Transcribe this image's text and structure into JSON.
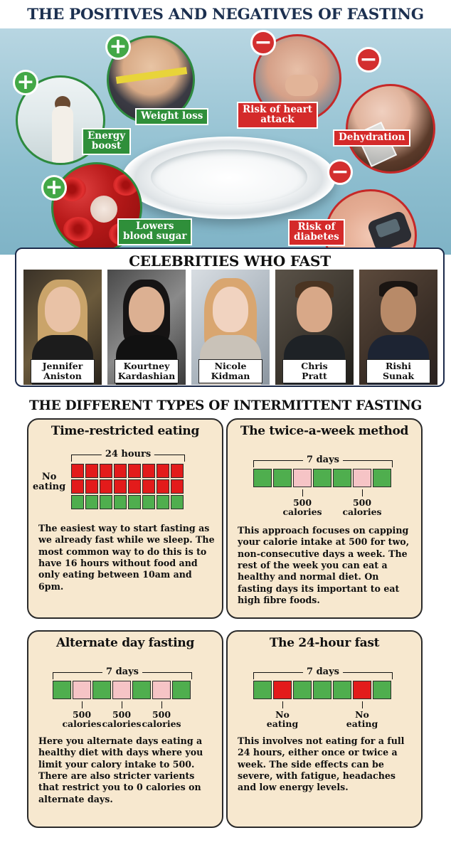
{
  "title": "THE POSITIVES AND NEGATIVES OF FASTING",
  "positives": [
    "Weight loss",
    "Energy\nboost",
    "Lowers\nblood sugar"
  ],
  "negatives": [
    "Risk of heart\nattack",
    "Dehydration",
    "Risk of\ndiabetes"
  ],
  "celebrities": {
    "title": "CELEBRITIES WHO FAST",
    "people": [
      {
        "first": "Jennifer",
        "last": "Aniston"
      },
      {
        "first": "Kourtney",
        "last": "Kardashian"
      },
      {
        "first": "Nicole",
        "last": "Kidman"
      },
      {
        "first": "Chris",
        "last": "Pratt"
      },
      {
        "first": "Rishi",
        "last": "Sunak"
      }
    ]
  },
  "types_title": "THE DIFFERENT TYPES OF INTERMITTENT FASTING",
  "cards": {
    "time_restricted": {
      "title": "Time-restricted eating",
      "span": "24 hours",
      "side_label": "No\neating",
      "hours_pattern": [
        "rrrrrrrr",
        "rrrrrrrr",
        "gggggggg"
      ],
      "body": "The easiest way to start fasting as we already fast while we sleep.  The most common way to do this is to have 16 hours without food and only eating between 10am and 6pm."
    },
    "twice_a_week": {
      "title": "The twice-a-week method",
      "span": "7 days",
      "days": [
        "g",
        "g",
        "p",
        "g",
        "g",
        "p",
        "g"
      ],
      "marks": [
        {
          "day": 2,
          "text": "500\ncalories"
        },
        {
          "day": 5,
          "text": "500\ncalories"
        }
      ],
      "body": "This approach focuses on capping your calorie intake at 500 for two, non-consecutive days a week.  The rest of the week you can eat a healthy and normal diet.  On fasting days its important to eat high fibre foods."
    },
    "alternate_day": {
      "title": "Alternate day fasting",
      "span": "7 days",
      "days": [
        "g",
        "p",
        "g",
        "p",
        "g",
        "p",
        "g"
      ],
      "marks": [
        {
          "day": 1,
          "text": "500\ncalories"
        },
        {
          "day": 3,
          "text": "500\ncalories"
        },
        {
          "day": 5,
          "text": "500\ncalories"
        }
      ],
      "body": "Here you alternate days eating a healthy diet with days where you limit your calory intake to 500. There are also stricter varients that restrict you to 0 calories on alternate days."
    },
    "fast_24h": {
      "title": "The 24-hour fast",
      "span": "7 days",
      "days": [
        "g",
        "r",
        "g",
        "g",
        "g",
        "r",
        "g"
      ],
      "marks": [
        {
          "day": 1,
          "text": "No\neating"
        },
        {
          "day": 5,
          "text": "No\neating"
        }
      ],
      "body": "This involves not eating for a full 24 hours, either once or twice a week.  The side effects can be severe, with fatigue, headaches and low energy levels."
    }
  },
  "colors": {
    "positive": "#2f8f3a",
    "negative": "#d42a2a",
    "eat_day": "#4fae4e",
    "fast_day_500": "#f6c4c6",
    "no_eating": "#e31b1b",
    "card_bg": "#f7e8cf"
  },
  "icons": [
    "plus-icon",
    "minus-icon"
  ]
}
